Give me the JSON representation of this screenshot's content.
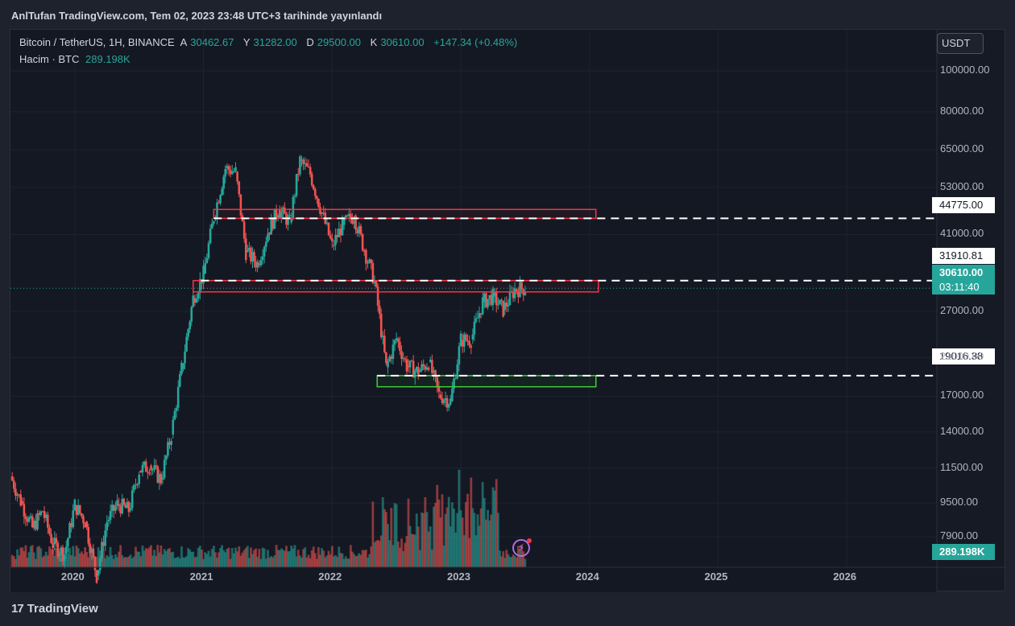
{
  "header": {
    "published": "AnlTufan TradingView.com, Tem 02, 2023 23:48 UTC+3 tarihinde yayınlandı"
  },
  "legend": {
    "symbol": "Bitcoin / TetherUS, 1H, BINANCE",
    "open_key": "A",
    "open": "30462.67",
    "high_key": "Y",
    "high": "31282.00",
    "low_key": "D",
    "low": "29500.00",
    "close_key": "K",
    "close": "30610.00",
    "change": "+147.34 (+0.48%)",
    "volume_label": "Hacim · BTC",
    "volume_value": "289.198K"
  },
  "currency": "USDT",
  "price_labels": {
    "resistance_upper": "44775.00",
    "resistance_lower": "31910.81",
    "last_price": "30610.00",
    "countdown": "03:11:40",
    "support": "19016.38",
    "volume": "289.198K"
  },
  "footer": {
    "brand": "TradingView",
    "logo_mark": "17"
  },
  "colors": {
    "up": "#26a69a",
    "down": "#ef5350",
    "resistance_box": "#f23645",
    "support_box": "#3dd138",
    "background": "#141823"
  },
  "icons": {
    "flash": "flash-icon"
  },
  "chart_data": {
    "type": "candlestick",
    "scale": "log",
    "ylim": [
      6700,
      125000
    ],
    "y_ticks": [
      "100000.00",
      "80000.00",
      "65000.00",
      "53000.00",
      "41000.00",
      "27000.00",
      "21000.00",
      "17000.00",
      "14000.00",
      "11500.00",
      "9500.00",
      "7900.00"
    ],
    "x_ticks": [
      "2020",
      "2021",
      "2022",
      "2023",
      "2024",
      "2025",
      "2026"
    ],
    "xlim": [
      2019.5,
      2026.7
    ],
    "monthly_close": [
      [
        2019.5,
        11000
      ],
      [
        2019.58,
        9600
      ],
      [
        2019.67,
        8300
      ],
      [
        2019.75,
        9100
      ],
      [
        2019.83,
        7600
      ],
      [
        2019.92,
        7200
      ],
      [
        2020.0,
        9400
      ],
      [
        2020.08,
        8600
      ],
      [
        2020.17,
        6400
      ],
      [
        2020.25,
        8600
      ],
      [
        2020.33,
        9450
      ],
      [
        2020.42,
        9140
      ],
      [
        2020.5,
        11350
      ],
      [
        2020.58,
        11650
      ],
      [
        2020.67,
        10800
      ],
      [
        2020.75,
        13800
      ],
      [
        2020.83,
        19700
      ],
      [
        2020.92,
        29000
      ],
      [
        2021.0,
        33100
      ],
      [
        2021.08,
        45100
      ],
      [
        2021.17,
        58800
      ],
      [
        2021.25,
        57700
      ],
      [
        2021.33,
        37300
      ],
      [
        2021.42,
        35000
      ],
      [
        2021.5,
        41500
      ],
      [
        2021.58,
        47100
      ],
      [
        2021.67,
        43800
      ],
      [
        2021.75,
        61300
      ],
      [
        2021.83,
        57000
      ],
      [
        2021.92,
        46200
      ],
      [
        2022.0,
        38500
      ],
      [
        2022.08,
        43200
      ],
      [
        2022.17,
        45500
      ],
      [
        2022.25,
        37700
      ],
      [
        2022.33,
        31800
      ],
      [
        2022.42,
        19900
      ],
      [
        2022.5,
        23300
      ],
      [
        2022.58,
        20050
      ],
      [
        2022.67,
        19400
      ],
      [
        2022.75,
        20500
      ],
      [
        2022.83,
        17150
      ],
      [
        2022.92,
        16550
      ],
      [
        2023.0,
        23100
      ],
      [
        2023.08,
        23150
      ],
      [
        2023.17,
        28450
      ],
      [
        2023.25,
        29250
      ],
      [
        2023.33,
        27200
      ],
      [
        2023.42,
        30450
      ],
      [
        2023.5,
        30610
      ]
    ],
    "zones": [
      {
        "name": "resistance-upper",
        "low": 44775,
        "high": 47000
      },
      {
        "name": "resistance-lower",
        "low": 30000,
        "high": 31910.81
      },
      {
        "name": "support",
        "low": 17900,
        "high": 19016.38
      }
    ],
    "last_price": 30610.0,
    "volume_last": "289.198K"
  }
}
